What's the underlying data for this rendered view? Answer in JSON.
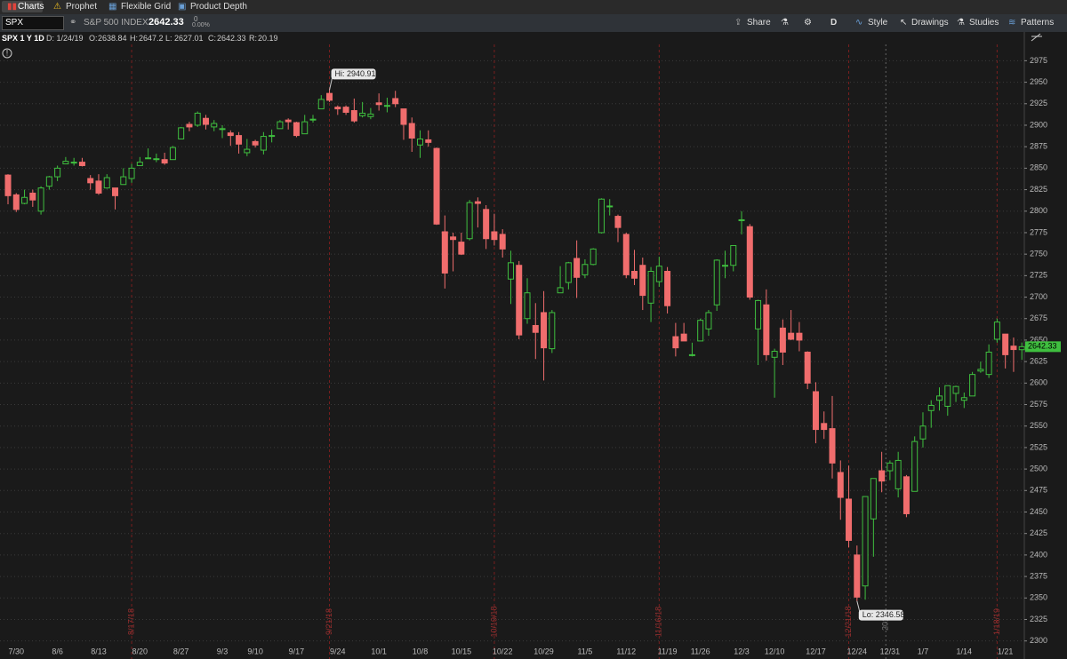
{
  "toolbar": {
    "tabs": [
      "Charts",
      "Prophet",
      "Flexible Grid",
      "Product Depth"
    ],
    "symbol": "SPX",
    "description": "S&P 500 INDEX",
    "change": "0",
    "change_pct": "0.00%",
    "buttons": [
      "Share",
      "D",
      "Style",
      "Drawings",
      "Studies",
      "Patterns"
    ]
  },
  "chart_header": {
    "name": "SPX 1 Y 1D",
    "date": "D: 1/24/19",
    "o_label": "O:",
    "h_label": "H:",
    "l_label": "L:",
    "c_label": "C:",
    "r_label": "R:",
    "range": 20.19
  },
  "chart_data": {
    "type": "candlestick",
    "up_color": "#3fbf3f",
    "down_color": "#f06d6d",
    "grid": true,
    "ylim": [
      2279,
      2994
    ],
    "yticks": [
      2300,
      2325,
      2350,
      2375,
      2400,
      2425,
      2450,
      2475,
      2500,
      2525,
      2550,
      2575,
      2600,
      2625,
      2650,
      2675,
      2700,
      2725,
      2750,
      2775,
      2800,
      2825,
      2850,
      2875,
      2900,
      2925,
      2950,
      2975
    ],
    "categories": [
      null,
      "7/30",
      null,
      null,
      null,
      null,
      "8/6",
      null,
      null,
      null,
      null,
      "8/13",
      null,
      null,
      null,
      null,
      "8/20",
      null,
      null,
      null,
      null,
      "8/27",
      null,
      null,
      null,
      null,
      "9/3",
      null,
      null,
      null,
      "9/10",
      null,
      null,
      null,
      null,
      "9/17",
      null,
      null,
      null,
      null,
      "9/24",
      null,
      null,
      null,
      null,
      "10/1",
      null,
      null,
      null,
      null,
      "10/8",
      null,
      null,
      null,
      null,
      "10/15",
      null,
      null,
      null,
      null,
      "10/22",
      null,
      null,
      null,
      null,
      "10/29",
      null,
      null,
      null,
      null,
      "11/5",
      null,
      null,
      null,
      null,
      "11/12",
      null,
      null,
      null,
      null,
      "11/19",
      null,
      null,
      null,
      "11/26",
      null,
      null,
      null,
      null,
      "12/3",
      null,
      null,
      null,
      "12/10",
      null,
      null,
      null,
      null,
      "12/17",
      null,
      null,
      null,
      null,
      "12/24",
      null,
      null,
      null,
      "12/31",
      null,
      null,
      null,
      "1/7",
      null,
      null,
      null,
      null,
      "1/14",
      null,
      null,
      null,
      null,
      "1/21",
      null,
      null
    ],
    "open": [
      2842,
      2819,
      2809,
      2821,
      2800,
      2829,
      2840,
      2855,
      2856,
      2857,
      2838,
      2835,
      2827,
      2827,
      2831,
      2838,
      2853,
      2861,
      2860,
      2860,
      2860,
      2884,
      2901,
      2900,
      2908,
      2898,
      2896,
      2891,
      2888,
      2868,
      2881,
      2871,
      2888,
      2896,
      2906,
      2903,
      2890,
      2906,
      2919,
      2937,
      2921,
      2921,
      2917,
      2911,
      2910,
      2926,
      2923,
      2931,
      2919,
      2902,
      2877,
      2883,
      2873,
      2776,
      2770,
      2764,
      2768,
      2811,
      2802,
      2776,
      2773,
      2721,
      2737,
      2675,
      2667,
      2682,
      2640,
      2705,
      2717,
      2745,
      2726,
      2738,
      2775,
      2806,
      2794,
      2773,
      2730,
      2737,
      2693,
      2718,
      2730,
      2654,
      2657,
      2633,
      2649,
      2663,
      2691,
      2736,
      2737,
      2790,
      2782,
      2663,
      2691,
      2630,
      2664,
      2658,
      2658,
      2636,
      2590,
      2553,
      2547,
      2496,
      2465,
      2400,
      2364,
      2442,
      2498,
      2498,
      2477,
      2491,
      2474,
      2535,
      2568,
      2580,
      2573,
      2588,
      2580,
      2585,
      2614,
      2610,
      2651,
      2657,
      2643,
      2638.84
    ],
    "high": [
      2843,
      2821,
      2825,
      2825,
      2829,
      2841,
      2853,
      2863,
      2862,
      2862,
      2842,
      2843,
      2843,
      2827,
      2850,
      2855,
      2863,
      2873,
      2867,
      2868,
      2876,
      2898,
      2904,
      2916,
      2912,
      2906,
      2900,
      2894,
      2892,
      2884,
      2883,
      2892,
      2895,
      2906,
      2908,
      2904,
      2912,
      2912,
      2935,
      2940.91,
      2923,
      2923,
      2931,
      2927,
      2920,
      2937,
      2932,
      2940,
      2919,
      2909,
      2894,
      2894,
      2874,
      2795,
      2775,
      2775,
      2813,
      2816,
      2807,
      2797,
      2779,
      2754,
      2742,
      2722,
      2693,
      2707,
      2685,
      2736,
      2741,
      2766,
      2744,
      2757,
      2815,
      2814,
      2796,
      2775,
      2755,
      2746,
      2735,
      2747,
      2735,
      2670,
      2670,
      2647,
      2675,
      2685,
      2744,
      2754,
      2760,
      2800,
      2785,
      2697,
      2709,
      2640,
      2674,
      2685,
      2671,
      2637,
      2601,
      2567,
      2585,
      2510,
      2504,
      2411,
      2468,
      2489,
      2520,
      2510,
      2520,
      2493,
      2538,
      2566,
      2580,
      2595,
      2597,
      2597,
      2589,
      2613,
      2625,
      2645,
      2675,
      2657,
      2653,
      2647.2
    ],
    "low": [
      2808,
      2799,
      2808,
      2805,
      2796,
      2825,
      2835,
      2855,
      2853,
      2852,
      2825,
      2819,
      2826,
      2802,
      2831,
      2833,
      2853,
      2861,
      2857,
      2854,
      2860,
      2884,
      2893,
      2898,
      2895,
      2893,
      2885,
      2876,
      2867,
      2864,
      2874,
      2866,
      2880,
      2896,
      2895,
      2886,
      2890,
      2903,
      2919,
      2927,
      2912,
      2912,
      2903,
      2909,
      2907,
      2917,
      2915,
      2921,
      2883,
      2869,
      2862,
      2875,
      2784,
      2710,
      2730,
      2749,
      2766,
      2781,
      2756,
      2760,
      2746,
      2692,
      2651,
      2669,
      2628,
      2603,
      2635,
      2705,
      2709,
      2699,
      2722,
      2737,
      2774,
      2795,
      2764,
      2722,
      2714,
      2685,
      2671,
      2712,
      2681,
      2631,
      2649,
      2631,
      2649,
      2655,
      2684,
      2722,
      2730,
      2773,
      2697,
      2621,
      2626,
      2583,
      2621,
      2650,
      2637,
      2593,
      2530,
      2535,
      2489,
      2441,
      2409,
      2346.58,
      2348,
      2398,
      2473,
      2487,
      2467,
      2444,
      2474,
      2525,
      2548,
      2568,
      2562,
      2578,
      2571,
      2585,
      2612,
      2606,
      2647,
      2617,
      2613,
      2627.01
    ],
    "close": [
      2818,
      2802,
      2816,
      2813,
      2827,
      2840,
      2850,
      2858,
      2857,
      2853,
      2833,
      2821,
      2839,
      2818,
      2840,
      2850,
      2857,
      2862,
      2861,
      2856,
      2874,
      2897,
      2898,
      2914,
      2901,
      2902,
      2896,
      2888,
      2878,
      2872,
      2877,
      2887,
      2888,
      2904,
      2904,
      2888,
      2904,
      2907,
      2930,
      2929,
      2919,
      2915,
      2905,
      2914,
      2913,
      2924,
      2923,
      2925,
      2901,
      2885,
      2884,
      2880,
      2785,
      2728,
      2767,
      2750,
      2810,
      2809,
      2768,
      2767,
      2756,
      2740,
      2656,
      2705,
      2659,
      2641,
      2682,
      2711,
      2740,
      2723,
      2738,
      2756,
      2814,
      2806,
      2781,
      2726,
      2722,
      2702,
      2730,
      2736,
      2690,
      2641,
      2649,
      2633,
      2673,
      2682,
      2743,
      2737,
      2760,
      2790,
      2700,
      2696,
      2633,
      2637,
      2636,
      2651,
      2650,
      2600,
      2546,
      2546,
      2507,
      2467,
      2417,
      2351,
      2468,
      2489,
      2486,
      2507,
      2510,
      2448,
      2532,
      2550,
      2574,
      2585,
      2597,
      2596,
      2583,
      2610,
      2616,
      2636,
      2671,
      2633,
      2639,
      2642.33
    ],
    "annotations": {
      "high": "Hi: 2940.91",
      "low": "Lo: 2346.58"
    },
    "event_lines": [
      {
        "label": "8/17/18",
        "index": 15
      },
      {
        "label": "9/21/18",
        "index": 39
      },
      {
        "label": "10/19/18",
        "index": 59
      },
      {
        "label": "11/16/18",
        "index": 79
      },
      {
        "label": "12/21/18",
        "index": 102
      },
      {
        "label": "1/18/19",
        "index": 120
      }
    ],
    "year_line": {
      "label": "2019",
      "index": 107
    }
  }
}
